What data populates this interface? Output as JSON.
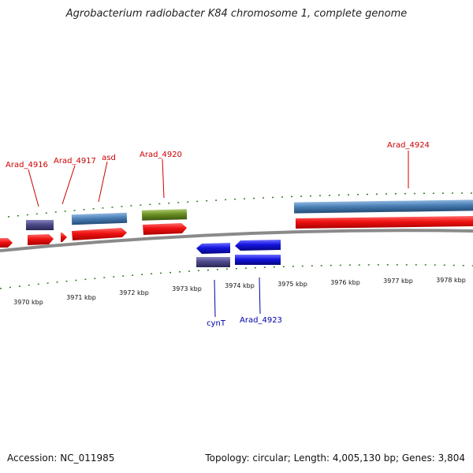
{
  "title": "Agrobacterium radiobacter K84 chromosome 1, complete genome",
  "accession": "Accession: NC_011985",
  "topology": "Topology: circular; Length: 4,005,130 bp; Genes: 3,804",
  "colors": {
    "backbone": "#8a8a8a",
    "tick_forward": "#2e7d1e",
    "tick_reverse": "#2e7d1e",
    "label_forward": "#cc0000",
    "label_reverse": "#0000aa",
    "red": "#ee1111",
    "steel": "#4a7fb5",
    "purple": "#4d4a8a",
    "olive": "#6b8e23",
    "blue": "#1414e0"
  },
  "scale_labels": [
    "3970 kbp",
    "3971 kbp",
    "3972 kbp",
    "3973 kbp",
    "3974 kbp",
    "3975 kbp",
    "3976 kbp",
    "3977 kbp",
    "3978 kbp"
  ],
  "gene_labels": {
    "forward": [
      "Arad_4916",
      "Arad_4917",
      "asd",
      "Arad_4920",
      "Arad_4924"
    ],
    "reverse": [
      "cynT",
      "Arad_4923"
    ]
  }
}
